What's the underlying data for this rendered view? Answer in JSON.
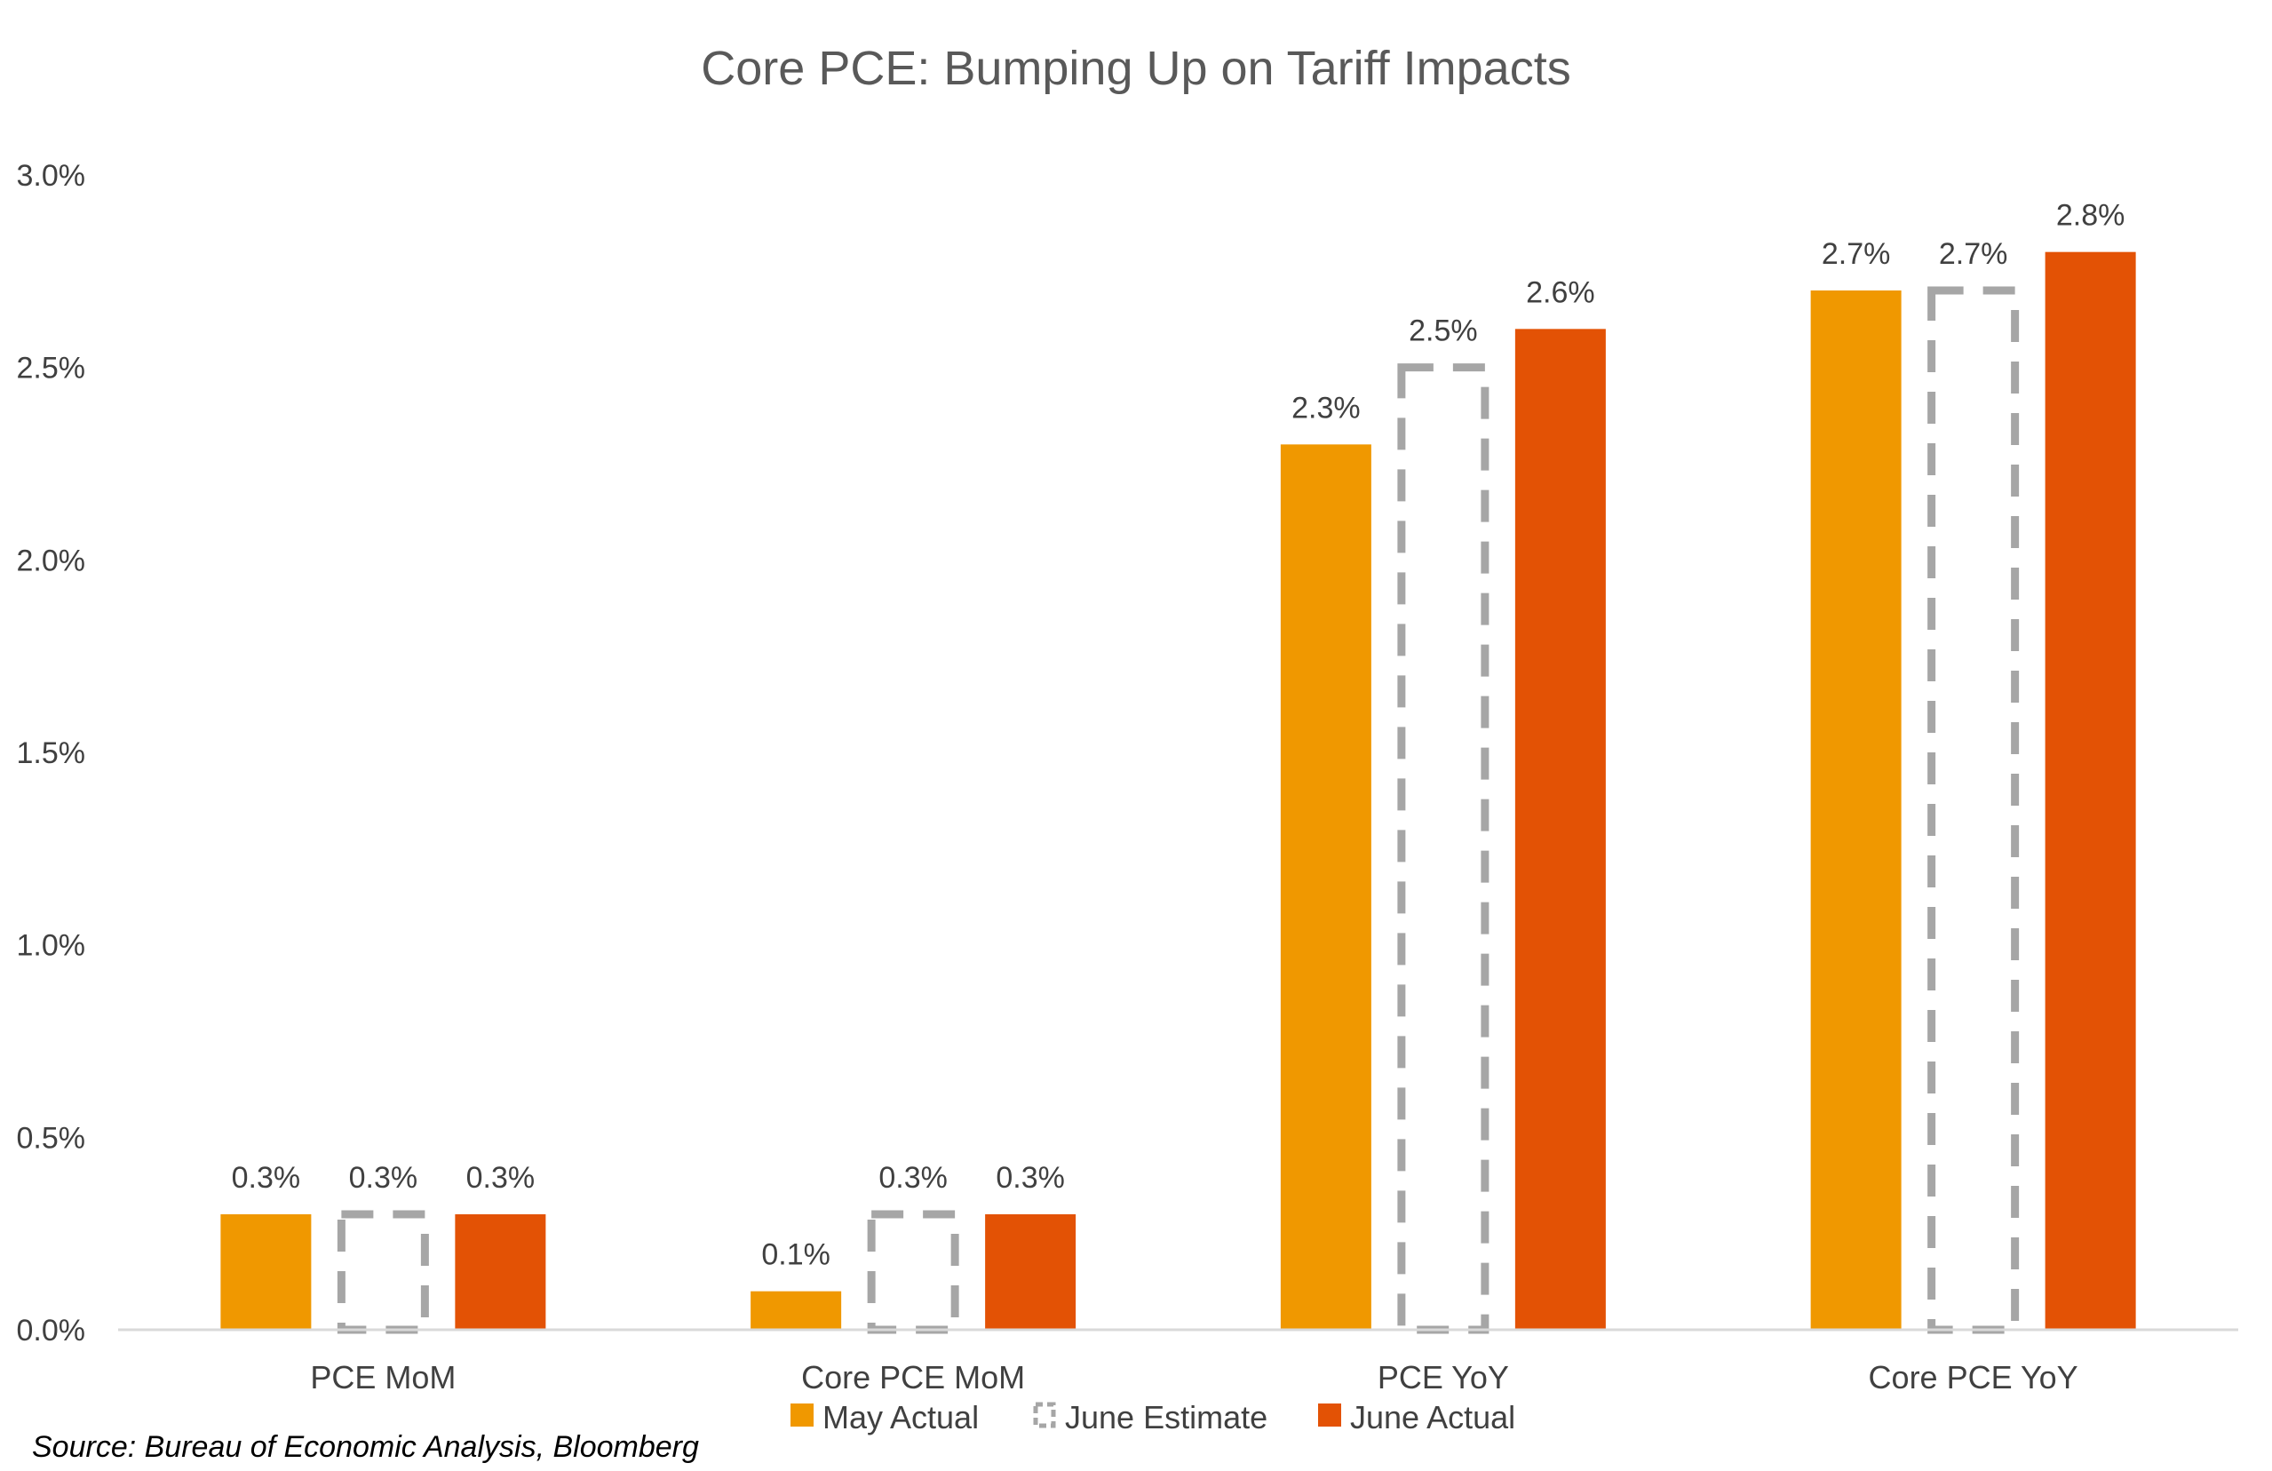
{
  "chart_data": {
    "type": "bar",
    "title": "Core PCE: Bumping Up on Tariff Impacts",
    "categories": [
      "PCE MoM",
      "Core PCE MoM",
      "PCE YoY",
      "Core PCE YoY"
    ],
    "series": [
      {
        "name": "May Actual",
        "values": [
          0.3,
          0.1,
          2.3,
          2.7
        ],
        "color": "#F09800",
        "style": "solid",
        "labels": [
          "0.3%",
          "0.1%",
          "2.3%",
          "2.7%"
        ]
      },
      {
        "name": "June Estimate",
        "values": [
          0.3,
          0.3,
          2.5,
          2.7
        ],
        "color": "#A6A6A6",
        "style": "dashed-outline",
        "labels": [
          "0.3%",
          "0.3%",
          "2.5%",
          "2.7%"
        ]
      },
      {
        "name": "June Actual",
        "values": [
          0.3,
          0.3,
          2.6,
          2.8
        ],
        "color": "#E35205",
        "style": "solid",
        "labels": [
          "0.3%",
          "0.3%",
          "2.6%",
          "2.8%"
        ]
      }
    ],
    "y_ticks": [
      0.0,
      0.5,
      1.0,
      1.5,
      2.0,
      2.5,
      3.0
    ],
    "y_tick_labels": [
      "0.0%",
      "0.5%",
      "1.0%",
      "1.5%",
      "2.0%",
      "2.5%",
      "3.0%"
    ],
    "ylim": [
      0,
      3.0
    ],
    "xlabel": "",
    "ylabel": "",
    "grid": false,
    "legend_position": "bottom-center"
  },
  "source": "Source: Bureau of Economic Analysis, Bloomberg"
}
